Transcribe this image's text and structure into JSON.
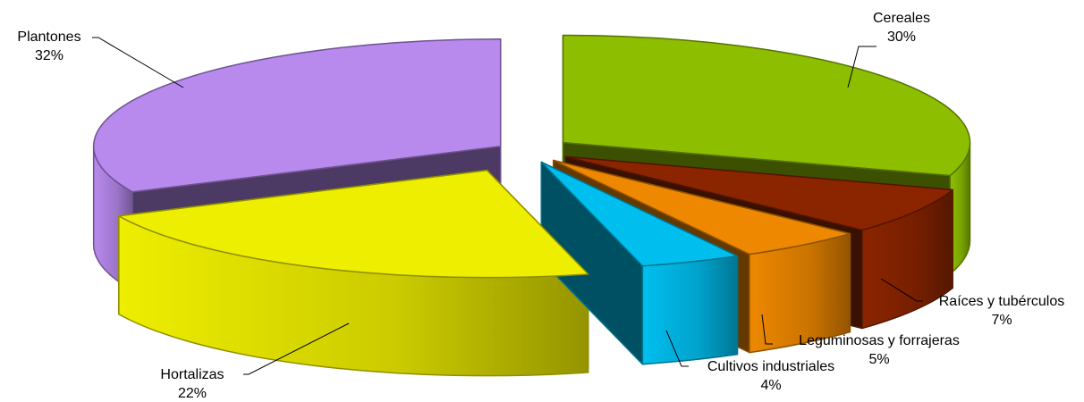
{
  "chart_data": {
    "type": "pie",
    "style": "3d-exploded",
    "title": "",
    "slices": [
      {
        "label": "Cereales",
        "value": 30,
        "value_label": "30%",
        "color": "#8DBF00"
      },
      {
        "label": "Raíces y tubérculos",
        "value": 7,
        "value_label": "7%",
        "color": "#8B2500"
      },
      {
        "label": "Leguminosas y forrajeras",
        "value": 5,
        "value_label": "5%",
        "color": "#EE8800"
      },
      {
        "label": "Cultivos industriales",
        "value": 4,
        "value_label": "4%",
        "color": "#00BFEF"
      },
      {
        "label": "Hortalizas",
        "value": 22,
        "value_label": "22%",
        "color": "#EEEE00"
      },
      {
        "label": "Plantones",
        "value": 32,
        "value_label": "32%",
        "color": "#B88AEE"
      }
    ]
  }
}
